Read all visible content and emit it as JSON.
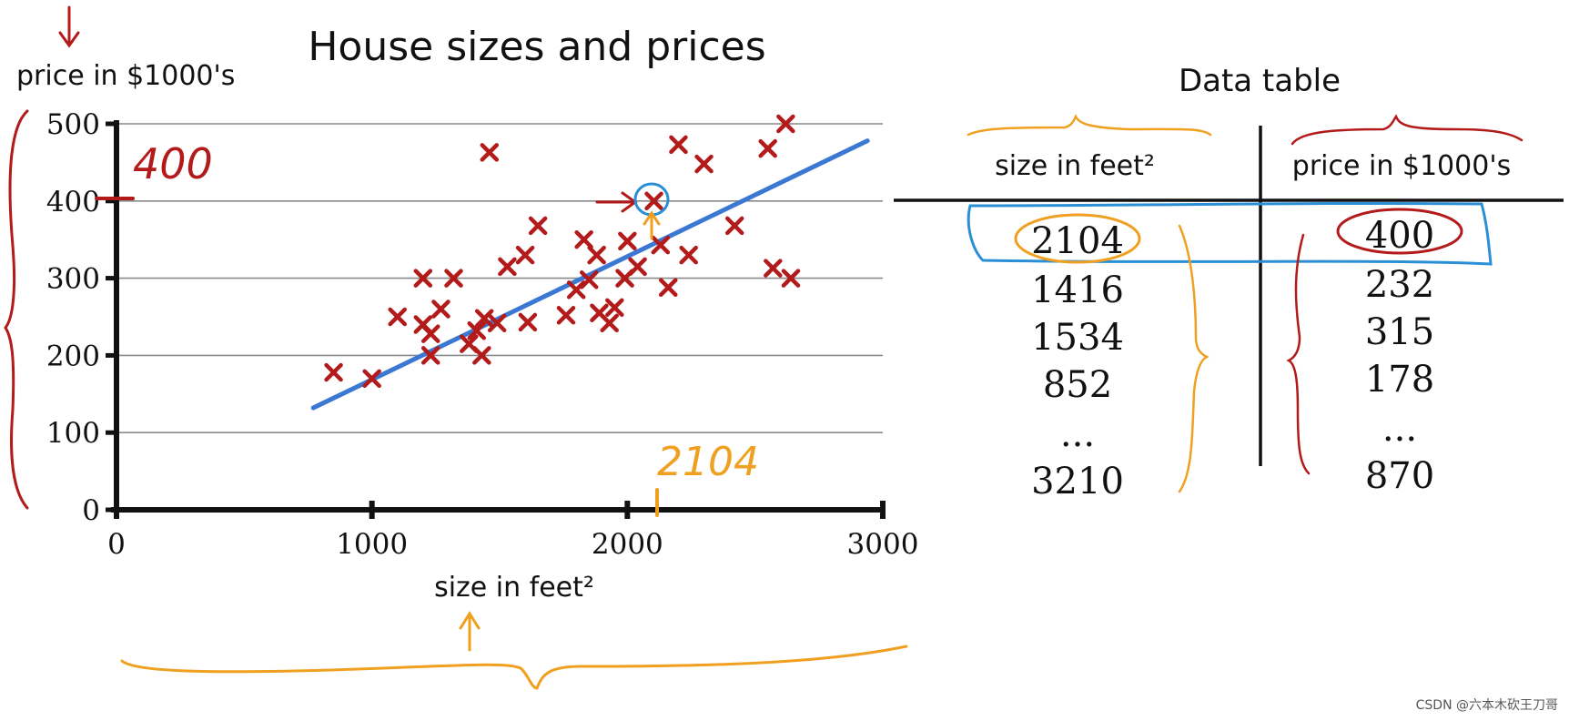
{
  "chart_data": {
    "type": "scatter",
    "title": "House sizes and prices",
    "xlabel": "size in feet²",
    "ylabel": "price in $1000's",
    "xlim": [
      0,
      3000
    ],
    "ylim": [
      0,
      500
    ],
    "xticks": [
      "0",
      "1000",
      "2000",
      "3000"
    ],
    "yticks": [
      "0",
      "100",
      "200",
      "300",
      "400",
      "500"
    ],
    "grid": "horizontal",
    "points": [
      [
        850,
        178
      ],
      [
        1000,
        170
      ],
      [
        1100,
        250
      ],
      [
        1200,
        300
      ],
      [
        1200,
        240
      ],
      [
        1230,
        228
      ],
      [
        1230,
        200
      ],
      [
        1270,
        260
      ],
      [
        1320,
        300
      ],
      [
        1380,
        215
      ],
      [
        1410,
        232
      ],
      [
        1430,
        200
      ],
      [
        1440,
        248
      ],
      [
        1460,
        463
      ],
      [
        1490,
        242
      ],
      [
        1530,
        315
      ],
      [
        1600,
        330
      ],
      [
        1610,
        243
      ],
      [
        1650,
        368
      ],
      [
        1760,
        252
      ],
      [
        1800,
        285
      ],
      [
        1830,
        350
      ],
      [
        1850,
        298
      ],
      [
        1880,
        330
      ],
      [
        1890,
        255
      ],
      [
        1930,
        242
      ],
      [
        1950,
        262
      ],
      [
        1990,
        300
      ],
      [
        2000,
        348
      ],
      [
        2040,
        315
      ],
      [
        2104,
        400
      ],
      [
        2130,
        343
      ],
      [
        2160,
        288
      ],
      [
        2200,
        473
      ],
      [
        2240,
        330
      ],
      [
        2300,
        448
      ],
      [
        2420,
        368
      ],
      [
        2550,
        468
      ],
      [
        2570,
        313
      ],
      [
        2620,
        500
      ],
      [
        2640,
        300
      ]
    ],
    "fit_line": [
      [
        770,
        132
      ],
      [
        2940,
        478
      ]
    ],
    "annotations": [
      "400",
      "2104"
    ]
  },
  "table": {
    "title": "Data table",
    "col1_header": "size in feet²",
    "col2_header": "price in $1000's",
    "rows": [
      {
        "size": "2104",
        "price": "400"
      },
      {
        "size": "1416",
        "price": "232"
      },
      {
        "size": "1534",
        "price": "315"
      },
      {
        "size": "852",
        "price": "178"
      },
      {
        "size": "...",
        "price": "..."
      },
      {
        "size": "3210",
        "price": "870"
      }
    ]
  },
  "watermark": "CSDN @六本木砍王刀哥",
  "colors": {
    "points": "#b31b1b",
    "fit_line": "#3a78d4",
    "highlight_blue": "#2b8fd6",
    "annotation_orange": "#f0a020",
    "annotation_red": "#b31b1b"
  }
}
